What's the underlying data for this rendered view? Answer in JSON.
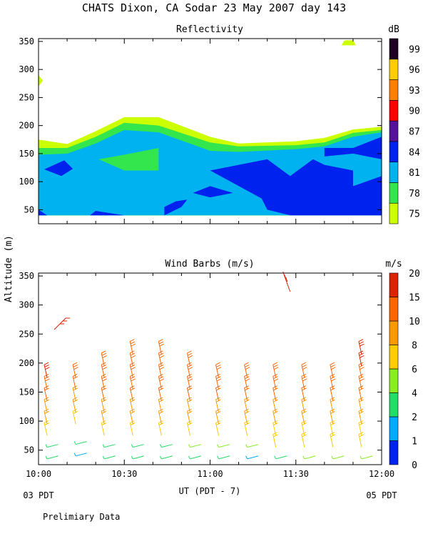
{
  "page": {
    "title": "CHATS Dixon, CA  Sodar  23 May 2007  day 143",
    "y_axis_label": "Altitude (m)",
    "x_axis_label": "UT  (PDT - 7)",
    "left_date": "03 PDT",
    "right_date": "05 PDT",
    "footer_note": "Prelimiary Data"
  },
  "chart_data": [
    {
      "type": "contour",
      "title": "Reflectivity",
      "colorbar_unit": "dB",
      "xlim_minutes": [
        0,
        120
      ],
      "ylim": [
        25,
        355
      ],
      "yticks": [
        50,
        100,
        150,
        200,
        250,
        300,
        350
      ],
      "colorbar": {
        "levels": [
          "75",
          "78",
          "81",
          "84",
          "87",
          "90",
          "93",
          "96",
          "99"
        ],
        "colors": [
          "#ccff00",
          "#33e64d",
          "#00b3f0",
          "#0022ee",
          "#551199",
          "#ff0000",
          "#ff8000",
          "#ffcc00",
          "#1e0022"
        ]
      },
      "bands": [
        {
          "color": "#ccff00",
          "x_minutes": [
            0,
            10,
            20,
            30,
            42,
            60,
            70,
            90,
            100,
            110,
            120
          ],
          "y_top_m": [
            175,
            167,
            190,
            215,
            215,
            180,
            168,
            172,
            178,
            193,
            198
          ]
        },
        {
          "color": "#33e64d",
          "x_minutes": [
            0,
            10,
            20,
            30,
            42,
            60,
            70,
            90,
            100,
            110,
            120
          ],
          "y_top_m": [
            160,
            160,
            180,
            205,
            200,
            170,
            163,
            165,
            170,
            187,
            192
          ]
        },
        {
          "color": "#00b3f0",
          "x_minutes": [
            0,
            10,
            20,
            30,
            42,
            60,
            70,
            90,
            100,
            110,
            120
          ],
          "y_top_m": [
            148,
            150,
            168,
            192,
            188,
            155,
            153,
            158,
            163,
            180,
            188
          ]
        }
      ],
      "patches": [
        {
          "color": "#ccff00",
          "points": [
            [
              0,
              270
            ],
            [
              0,
              290
            ],
            [
              1.5,
              280
            ]
          ]
        },
        {
          "color": "#ccff00",
          "points": [
            [
              106,
              343
            ],
            [
              107,
              352
            ],
            [
              110,
              352
            ],
            [
              111,
              343
            ]
          ]
        },
        {
          "color": "#33e64d",
          "points": [
            [
              21,
              140
            ],
            [
              30,
              148
            ],
            [
              42,
              160
            ],
            [
              42,
              120
            ],
            [
              30,
              120
            ]
          ]
        },
        {
          "color": "#0022ee",
          "points": [
            [
              2,
              122
            ],
            [
              8,
              110
            ],
            [
              12,
              123
            ],
            [
              9,
              138
            ]
          ]
        },
        {
          "color": "#0022ee",
          "points": [
            [
              0,
              40
            ],
            [
              3,
              40
            ],
            [
              0,
              50
            ]
          ]
        },
        {
          "color": "#0022ee",
          "points": [
            [
              18,
              40
            ],
            [
              20,
              48
            ],
            [
              30,
              40
            ]
          ]
        },
        {
          "color": "#0022ee",
          "points": [
            [
              44,
              40
            ],
            [
              50,
              55
            ],
            [
              52,
              68
            ],
            [
              48,
              65
            ],
            [
              44,
              55
            ]
          ]
        },
        {
          "color": "#0022ee",
          "points": [
            [
              54,
              80
            ],
            [
              60,
              92
            ],
            [
              68,
              80
            ],
            [
              60,
              72
            ]
          ]
        },
        {
          "color": "#0022ee",
          "points": [
            [
              60,
              120
            ],
            [
              80,
              140
            ],
            [
              88,
              110
            ],
            [
              96,
              140
            ],
            [
              100,
              130
            ],
            [
              110,
              120
            ],
            [
              110,
              92
            ],
            [
              120,
              110
            ],
            [
              120,
              40
            ],
            [
              100,
              40
            ],
            [
              88,
              40
            ],
            [
              80,
              50
            ],
            [
              78,
              70
            ]
          ]
        },
        {
          "color": "#0022ee",
          "points": [
            [
              100,
              160
            ],
            [
              110,
              160
            ],
            [
              120,
              180
            ],
            [
              120,
              140
            ],
            [
              110,
              150
            ],
            [
              100,
              145
            ]
          ]
        }
      ]
    },
    {
      "type": "wind_barbs",
      "title": "Wind Barbs (m/s)",
      "colorbar_unit": "m/s",
      "xlim_minutes": [
        0,
        120
      ],
      "ylim": [
        25,
        355
      ],
      "yticks": [
        50,
        100,
        150,
        200,
        250,
        300,
        350
      ],
      "xticks": [
        "10:00",
        "10:30",
        "11:00",
        "11:30",
        "12:00"
      ],
      "colorbar": {
        "levels": [
          "0",
          "1",
          "2",
          "4",
          "6",
          "8",
          "10",
          "15",
          "20"
        ],
        "colors": [
          "#0022ee",
          "#00aaff",
          "#22dd66",
          "#88ee22",
          "#ffcc00",
          "#ff9900",
          "#ff6600",
          "#dd2200"
        ]
      },
      "wind_speed_ms": [
        {
          "x_min": 0,
          "altitudes_m": [
            35,
            55,
            75,
            95,
            115,
            135,
            155,
            175
          ],
          "speeds_ms": [
            4,
            5,
            9,
            10,
            11,
            12,
            13,
            16
          ]
        },
        {
          "x_min": 10,
          "altitudes_m": [
            40,
            60,
            95,
            115,
            135,
            155,
            175
          ],
          "speeds_ms": [
            2,
            4,
            9,
            10,
            11,
            12,
            14
          ]
        },
        {
          "x_min": 20,
          "altitudes_m": [
            35,
            55,
            75,
            95,
            115,
            135,
            155,
            175,
            195
          ],
          "speeds_ms": [
            4,
            5,
            9,
            10,
            11,
            12,
            13,
            13,
            14
          ]
        },
        {
          "x_min": 30,
          "altitudes_m": [
            35,
            55,
            75,
            95,
            115,
            135,
            155,
            175,
            195,
            215
          ],
          "speeds_ms": [
            4,
            5,
            9,
            10,
            11,
            12,
            13,
            13,
            14,
            14
          ]
        },
        {
          "x_min": 40,
          "altitudes_m": [
            35,
            55,
            75,
            95,
            115,
            135,
            155,
            175,
            195,
            215
          ],
          "speeds_ms": [
            4,
            5,
            9,
            10,
            11,
            12,
            13,
            13,
            14,
            14
          ]
        },
        {
          "x_min": 50,
          "altitudes_m": [
            35,
            55,
            75,
            95,
            115,
            135,
            155,
            175,
            195
          ],
          "speeds_ms": [
            4,
            7,
            9,
            10,
            11,
            12,
            13,
            13,
            14
          ]
        },
        {
          "x_min": 60,
          "altitudes_m": [
            35,
            55,
            75,
            95,
            115,
            135,
            155,
            175
          ],
          "speeds_ms": [
            4,
            7,
            9,
            10,
            11,
            12,
            13,
            13
          ]
        },
        {
          "x_min": 70,
          "altitudes_m": [
            35,
            55,
            75,
            95,
            115,
            135,
            155,
            175
          ],
          "speeds_ms": [
            2,
            7,
            9,
            10,
            11,
            12,
            13,
            13
          ]
        },
        {
          "x_min": 80,
          "altitudes_m": [
            35,
            55,
            75,
            95,
            115,
            135,
            155,
            175
          ],
          "speeds_ms": [
            5,
            8,
            9,
            10,
            11,
            12,
            13,
            13
          ]
        },
        {
          "x_min": 90,
          "altitudes_m": [
            35,
            55,
            75,
            95,
            115,
            135,
            155,
            175
          ],
          "speeds_ms": [
            7,
            8,
            9,
            10,
            11,
            12,
            13,
            13
          ]
        },
        {
          "x_min": 100,
          "altitudes_m": [
            35,
            55,
            75,
            95,
            115,
            135,
            155,
            175
          ],
          "speeds_ms": [
            7,
            8,
            9,
            10,
            11,
            12,
            13,
            13
          ]
        },
        {
          "x_min": 110,
          "altitudes_m": [
            35,
            55,
            75,
            95,
            115,
            135,
            155,
            175,
            195,
            215
          ],
          "speeds_ms": [
            7,
            8,
            9,
            10,
            11,
            12,
            13,
            14,
            15,
            17
          ]
        }
      ],
      "isolated_barbs": [
        {
          "x_min": 7,
          "altitude_m": 270,
          "speed_ms": 16
        },
        {
          "x_min": 86,
          "altitude_m": 355,
          "speed_ms": 17
        }
      ]
    }
  ]
}
